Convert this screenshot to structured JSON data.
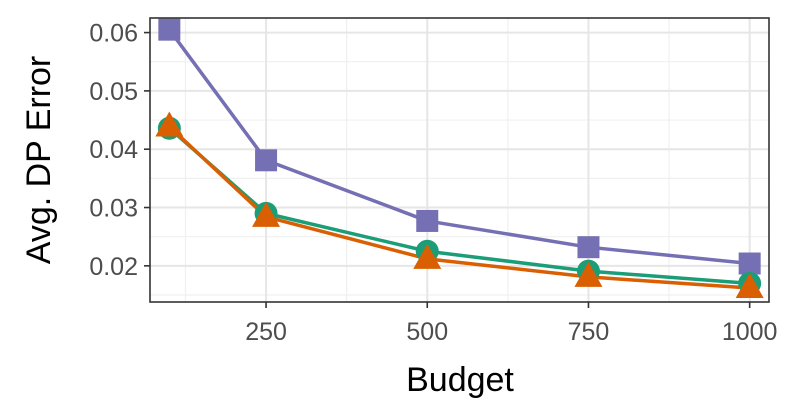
{
  "chart_data": {
    "type": "line",
    "title": "",
    "xlabel": "Budget",
    "ylabel": "Avg. DP Error",
    "x": [
      100,
      250,
      500,
      750,
      1000
    ],
    "xticks": [
      250,
      500,
      750,
      1000
    ],
    "yticks": [
      0.02,
      0.03,
      0.04,
      0.05,
      0.06
    ],
    "xticklabels": [
      "250",
      "500",
      "750",
      "1000"
    ],
    "yticklabels": [
      "0.02",
      "0.03",
      "0.04",
      "0.05",
      "0.06"
    ],
    "xlim": [
      70,
      1030
    ],
    "ylim": [
      0.0138,
      0.0625
    ],
    "grid": true,
    "legend": "none",
    "series": [
      {
        "marker": "square",
        "color": "#7570b3",
        "values": [
          0.0605,
          0.0381,
          0.0277,
          0.0232,
          0.0204
        ]
      },
      {
        "marker": "circle",
        "color": "#1b9e77",
        "values": [
          0.0436,
          0.029,
          0.0225,
          0.0191,
          0.017
        ]
      },
      {
        "marker": "triangle",
        "color": "#d95f02",
        "values": [
          0.0439,
          0.0284,
          0.0212,
          0.0181,
          0.0162
        ]
      }
    ]
  }
}
